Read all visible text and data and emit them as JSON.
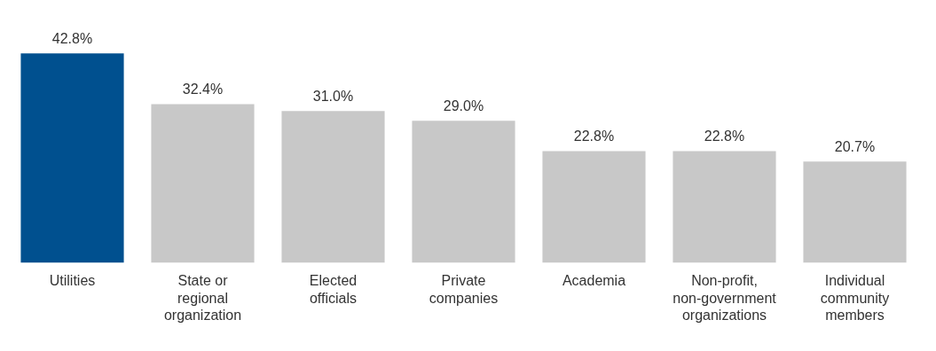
{
  "chart_data": {
    "type": "bar",
    "categories": [
      "Utilities",
      "State or regional organization",
      "Elected officials",
      "Private companies",
      "Academia",
      "Non-profit, non-government organizations",
      "Individual community members"
    ],
    "values": [
      42.8,
      32.4,
      31.0,
      29.0,
      22.8,
      22.8,
      20.7
    ],
    "value_labels": [
      "42.8%",
      "32.4%",
      "31.0%",
      "29.0%",
      "22.8%",
      "22.8%",
      "20.7%"
    ],
    "colors": [
      "#00508f",
      "#c8c8c8",
      "#c8c8c8",
      "#c8c8c8",
      "#c8c8c8",
      "#c8c8c8",
      "#c8c8c8"
    ],
    "grid": false,
    "legend": false,
    "tick_labels": "x"
  }
}
